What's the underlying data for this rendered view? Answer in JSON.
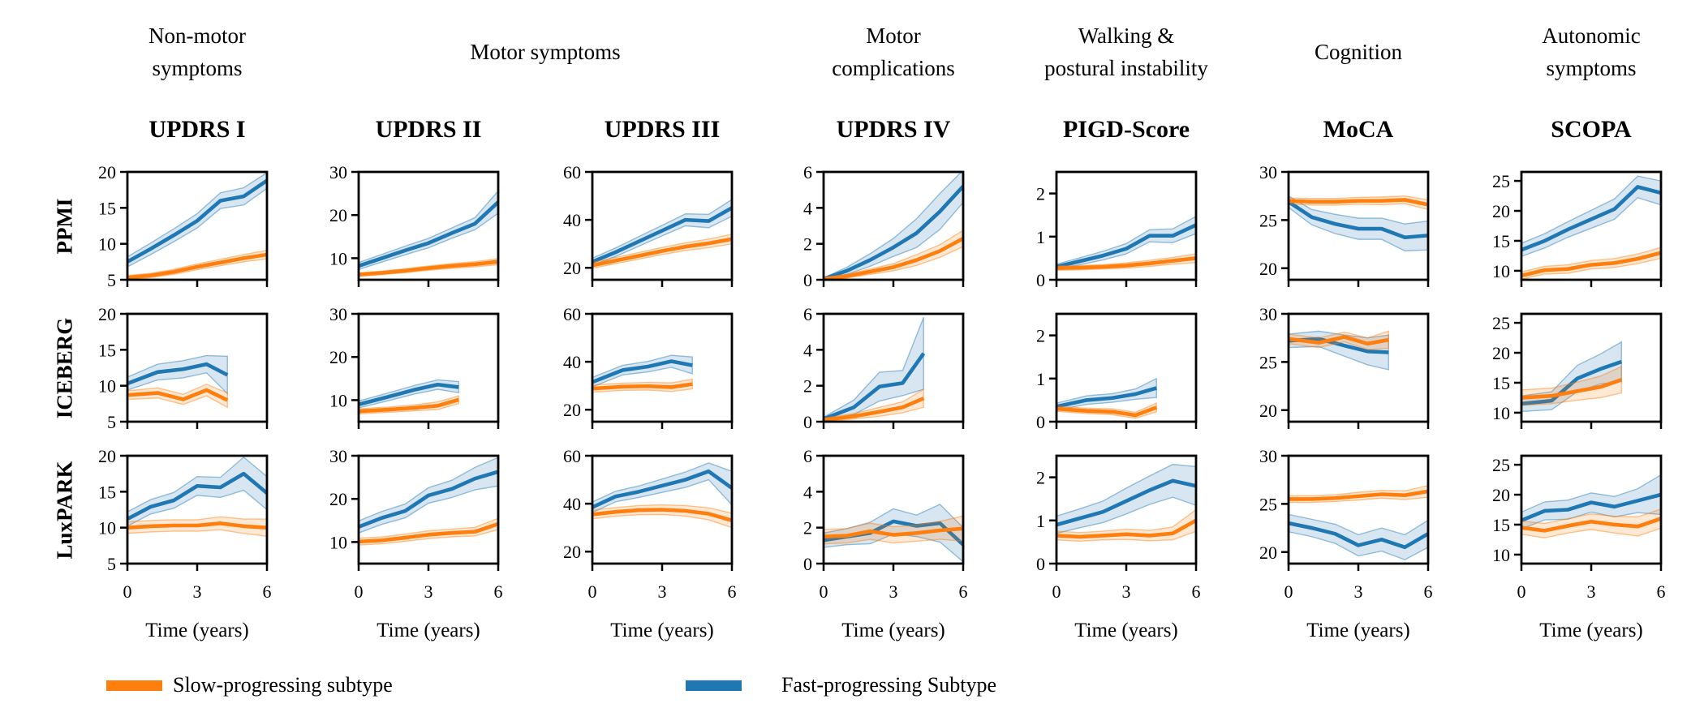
{
  "figure": {
    "background": "#ffffff"
  },
  "colors": {
    "slow": "#FF7F0E",
    "fast": "#1F77B4",
    "axis": "#000000"
  },
  "legend": [
    {
      "key": "slow",
      "label": "Slow-progressing subtype"
    },
    {
      "key": "fast",
      "label": "Fast-progressing Subtype"
    }
  ],
  "group_headers": [
    {
      "lines": [
        "Non-motor",
        "symptoms"
      ],
      "columns": [
        0
      ]
    },
    {
      "lines": [
        "Motor symptoms"
      ],
      "columns": [
        1,
        2
      ]
    },
    {
      "lines": [
        "Motor",
        "complications"
      ],
      "columns": [
        3
      ]
    },
    {
      "lines": [
        "Walking &",
        "postural instability"
      ],
      "columns": [
        4
      ]
    },
    {
      "lines": [
        "Cognition"
      ],
      "columns": [
        5
      ]
    },
    {
      "lines": [
        "Autonomic",
        "symptoms"
      ],
      "columns": [
        6
      ]
    }
  ],
  "chart_data": {
    "type": "line",
    "xlabel": "Time (years)",
    "xticks": [
      0,
      3,
      6
    ],
    "xlim": [
      0,
      6
    ],
    "legend_position": "bottom",
    "grid_lines": false,
    "columns": [
      {
        "title": "UPDRS I",
        "yticks": [
          5,
          10,
          15,
          20
        ],
        "ylim": [
          5,
          20
        ]
      },
      {
        "title": "UPDRS II",
        "yticks": [
          10,
          20,
          30
        ],
        "ylim": [
          5,
          30
        ]
      },
      {
        "title": "UPDRS III",
        "yticks": [
          20,
          40,
          60
        ],
        "ylim": [
          15,
          60
        ]
      },
      {
        "title": "UPDRS IV",
        "yticks": [
          0,
          2,
          4,
          6
        ],
        "ylim": [
          0,
          6
        ]
      },
      {
        "title": "PIGD-Score",
        "yticks": [
          0,
          1,
          2
        ],
        "ylim": [
          0,
          2.5
        ]
      },
      {
        "title": "MoCA",
        "yticks": [
          20,
          25,
          30
        ],
        "ylim": [
          18.8,
          30
        ]
      },
      {
        "title": "SCOPA",
        "yticks": [
          10,
          15,
          20,
          25
        ],
        "ylim": [
          8.5,
          26.5
        ]
      }
    ],
    "rows": [
      {
        "label": "PPMI",
        "x": [
          0,
          1,
          2,
          3,
          4,
          5,
          6
        ]
      },
      {
        "label": "ICEBERG",
        "x": [
          0,
          1.3,
          2.4,
          3.4,
          4.3
        ]
      },
      {
        "label": "LuxPARK",
        "x": [
          0,
          1,
          2,
          3,
          4,
          5,
          6
        ]
      }
    ],
    "grid": [
      {
        "row": "PPMI",
        "col": "UPDRS I",
        "series": {
          "fast": {
            "values": [
              7.5,
              9.3,
              11.2,
              13.2,
              16.0,
              16.6,
              18.8
            ],
            "band": [
              0.7,
              0.8,
              0.9,
              1.0,
              1.1,
              1.2,
              1.1
            ]
          },
          "slow": {
            "values": [
              5.3,
              5.6,
              6.1,
              6.8,
              7.4,
              8.0,
              8.5
            ],
            "band": [
              0.3,
              0.3,
              0.35,
              0.4,
              0.45,
              0.5,
              0.6
            ]
          }
        }
      },
      {
        "row": "PPMI",
        "col": "UPDRS II",
        "series": {
          "fast": {
            "values": [
              8.2,
              10.0,
              11.8,
              13.5,
              15.8,
              18.0,
              23.0
            ],
            "band": [
              0.8,
              0.9,
              1.0,
              1.1,
              1.2,
              1.4,
              2.6
            ]
          },
          "slow": {
            "values": [
              6.2,
              6.6,
              7.1,
              7.7,
              8.2,
              8.6,
              9.2
            ],
            "band": [
              0.4,
              0.4,
              0.45,
              0.5,
              0.55,
              0.6,
              0.7
            ]
          }
        }
      },
      {
        "row": "PPMI",
        "col": "UPDRS III",
        "series": {
          "fast": {
            "values": [
              22.5,
              26.5,
              31.0,
              35.5,
              40.0,
              39.5,
              45.0
            ],
            "band": [
              1.5,
              1.8,
              2.0,
              2.2,
              2.5,
              2.8,
              3.5
            ]
          },
          "slow": {
            "values": [
              21.0,
              23.0,
              25.0,
              27.0,
              28.8,
              30.2,
              32.0
            ],
            "band": [
              1.2,
              1.3,
              1.4,
              1.5,
              1.6,
              1.8,
              2.0
            ]
          }
        }
      },
      {
        "row": "PPMI",
        "col": "UPDRS IV",
        "series": {
          "fast": {
            "values": [
              0.05,
              0.5,
              1.1,
              1.8,
              2.6,
              3.8,
              5.2
            ],
            "band": [
              0.05,
              0.2,
              0.35,
              0.5,
              0.8,
              1.0,
              0.9
            ]
          },
          "slow": {
            "values": [
              0.05,
              0.2,
              0.45,
              0.7,
              1.1,
              1.6,
              2.3
            ],
            "band": [
              0.05,
              0.1,
              0.15,
              0.2,
              0.3,
              0.35,
              0.45
            ]
          }
        }
      },
      {
        "row": "PPMI",
        "col": "PIGD-Score",
        "series": {
          "fast": {
            "values": [
              0.3,
              0.43,
              0.56,
              0.72,
              1.02,
              1.02,
              1.27
            ],
            "band": [
              0.06,
              0.08,
              0.1,
              0.12,
              0.14,
              0.16,
              0.2
            ]
          },
          "slow": {
            "values": [
              0.27,
              0.28,
              0.3,
              0.33,
              0.38,
              0.44,
              0.5
            ],
            "band": [
              0.05,
              0.05,
              0.05,
              0.06,
              0.07,
              0.08,
              0.1
            ]
          }
        }
      },
      {
        "row": "PPMI",
        "col": "MoCA",
        "series": {
          "fast": {
            "values": [
              26.9,
              25.3,
              24.6,
              24.1,
              24.1,
              23.2,
              23.4
            ],
            "band": [
              0.6,
              0.8,
              1.0,
              1.1,
              1.1,
              1.4,
              1.5
            ]
          },
          "slow": {
            "values": [
              27.0,
              26.9,
              26.9,
              27.0,
              27.0,
              27.1,
              26.6
            ],
            "band": [
              0.3,
              0.35,
              0.35,
              0.35,
              0.4,
              0.4,
              0.5
            ]
          }
        }
      },
      {
        "row": "PPMI",
        "col": "SCOPA",
        "series": {
          "fast": {
            "values": [
              13.5,
              15.0,
              16.9,
              18.6,
              20.3,
              24.0,
              23.0
            ],
            "band": [
              1.1,
              1.2,
              1.3,
              1.5,
              1.7,
              1.8,
              2.0
            ]
          },
          "slow": {
            "values": [
              9.2,
              10.1,
              10.3,
              11.0,
              11.3,
              12.0,
              13.0
            ],
            "band": [
              0.6,
              0.65,
              0.7,
              0.7,
              0.75,
              0.8,
              0.9
            ]
          }
        }
      },
      {
        "row": "ICEBERG",
        "col": "UPDRS I",
        "series": {
          "fast": {
            "values": [
              10.3,
              11.9,
              12.3,
              13.0,
              11.5
            ],
            "band": [
              0.9,
              1.1,
              1.2,
              1.2,
              2.6
            ]
          },
          "slow": {
            "values": [
              8.7,
              9.0,
              8.1,
              9.4,
              8.0
            ],
            "band": [
              0.6,
              0.7,
              0.7,
              0.8,
              1.0
            ]
          }
        }
      },
      {
        "row": "ICEBERG",
        "col": "UPDRS II",
        "series": {
          "fast": {
            "values": [
              9.0,
              10.8,
              12.4,
              13.6,
              13.0
            ],
            "band": [
              0.8,
              0.9,
              1.0,
              1.1,
              1.3
            ]
          },
          "slow": {
            "values": [
              7.4,
              7.8,
              8.2,
              8.7,
              10.1
            ],
            "band": [
              0.6,
              0.6,
              0.7,
              0.9,
              0.9
            ]
          }
        }
      },
      {
        "row": "ICEBERG",
        "col": "UPDRS III",
        "series": {
          "fast": {
            "values": [
              31.5,
              36.5,
              38.0,
              40.2,
              38.5
            ],
            "band": [
              2.0,
              2.0,
              2.2,
              2.5,
              3.5
            ]
          },
          "slow": {
            "values": [
              28.8,
              29.6,
              29.8,
              29.4,
              30.7
            ],
            "band": [
              1.5,
              1.5,
              1.6,
              1.8,
              2.0
            ]
          }
        }
      },
      {
        "row": "ICEBERG",
        "col": "UPDRS IV",
        "series": {
          "fast": {
            "values": [
              0.15,
              0.8,
              1.95,
              2.15,
              3.8
            ],
            "band": [
              0.1,
              0.4,
              0.8,
              0.7,
              2.0
            ]
          },
          "slow": {
            "values": [
              0.1,
              0.3,
              0.55,
              0.8,
              1.3
            ],
            "band": [
              0.1,
              0.15,
              0.25,
              0.3,
              0.5
            ]
          }
        }
      },
      {
        "row": "ICEBERG",
        "col": "PIGD-Score",
        "series": {
          "fast": {
            "values": [
              0.35,
              0.5,
              0.55,
              0.64,
              0.78
            ],
            "band": [
              0.08,
              0.1,
              0.1,
              0.12,
              0.22
            ]
          },
          "slow": {
            "values": [
              0.3,
              0.25,
              0.23,
              0.15,
              0.33
            ],
            "band": [
              0.06,
              0.06,
              0.07,
              0.07,
              0.1
            ]
          }
        }
      },
      {
        "row": "ICEBERG",
        "col": "MoCA",
        "series": {
          "fast": {
            "values": [
              27.2,
              27.4,
              26.7,
              26.1,
              26.0
            ],
            "band": [
              0.7,
              0.8,
              1.1,
              1.4,
              1.8
            ]
          },
          "slow": {
            "values": [
              27.4,
              27.0,
              27.6,
              26.9,
              27.3
            ],
            "band": [
              0.5,
              0.5,
              0.5,
              0.6,
              0.9
            ]
          }
        }
      },
      {
        "row": "ICEBERG",
        "col": "SCOPA",
        "series": {
          "fast": {
            "values": [
              11.5,
              12.0,
              15.7,
              17.3,
              18.5
            ],
            "band": [
              1.3,
              1.5,
              2.2,
              2.5,
              3.3
            ]
          },
          "slow": {
            "values": [
              12.5,
              12.8,
              13.6,
              14.3,
              15.5
            ],
            "band": [
              1.3,
              1.3,
              1.5,
              1.8,
              2.2
            ]
          }
        }
      },
      {
        "row": "LuxPARK",
        "col": "UPDRS I",
        "series": {
          "fast": {
            "values": [
              11.2,
              12.9,
              13.8,
              15.8,
              15.6,
              17.5,
              14.8
            ],
            "band": [
              1.0,
              1.0,
              1.1,
              1.3,
              1.4,
              2.3,
              2.3
            ]
          },
          "slow": {
            "values": [
              10.0,
              10.2,
              10.3,
              10.3,
              10.6,
              10.2,
              10.0
            ],
            "band": [
              0.8,
              0.8,
              0.8,
              0.8,
              0.9,
              1.0,
              1.2
            ]
          }
        }
      },
      {
        "row": "LuxPARK",
        "col": "UPDRS II",
        "series": {
          "fast": {
            "values": [
              13.5,
              15.6,
              17.2,
              20.8,
              22.3,
              24.7,
              26.3
            ],
            "band": [
              1.4,
              1.5,
              1.6,
              1.8,
              2.0,
              2.6,
              3.3
            ]
          },
          "slow": {
            "values": [
              10.1,
              10.4,
              11.0,
              11.7,
              12.1,
              12.4,
              14.2
            ],
            "band": [
              0.8,
              0.8,
              0.85,
              0.9,
              0.9,
              1.0,
              1.3
            ]
          }
        }
      },
      {
        "row": "LuxPARK",
        "col": "UPDRS III",
        "series": {
          "fast": {
            "values": [
              38.5,
              43.0,
              45.0,
              47.5,
              50.0,
              53.5,
              46.5
            ],
            "band": [
              2.2,
              2.2,
              2.4,
              2.8,
              3.2,
              3.5,
              7.0
            ]
          },
          "slow": {
            "values": [
              35.5,
              36.6,
              37.3,
              37.5,
              37.0,
              35.8,
              33.0
            ],
            "band": [
              1.8,
              1.8,
              1.9,
              2.0,
              2.2,
              2.5,
              3.0
            ]
          }
        }
      },
      {
        "row": "LuxPARK",
        "col": "UPDRS IV",
        "series": {
          "fast": {
            "values": [
              1.3,
              1.5,
              1.7,
              2.35,
              2.1,
              2.25,
              1.05
            ],
            "band": [
              0.4,
              0.45,
              0.6,
              0.7,
              0.6,
              1.05,
              0.95
            ]
          },
          "slow": {
            "values": [
              1.5,
              1.55,
              1.8,
              1.6,
              1.7,
              1.85,
              1.95
            ],
            "band": [
              0.4,
              0.4,
              0.45,
              0.45,
              0.45,
              0.5,
              0.7
            ]
          }
        }
      },
      {
        "row": "LuxPARK",
        "col": "PIGD-Score",
        "series": {
          "fast": {
            "values": [
              0.9,
              1.05,
              1.2,
              1.45,
              1.7,
              1.92,
              1.8
            ],
            "band": [
              0.2,
              0.22,
              0.25,
              0.3,
              0.33,
              0.38,
              0.45
            ]
          },
          "slow": {
            "values": [
              0.65,
              0.62,
              0.65,
              0.68,
              0.65,
              0.7,
              1.0
            ],
            "band": [
              0.1,
              0.1,
              0.1,
              0.12,
              0.12,
              0.15,
              0.25
            ]
          }
        }
      },
      {
        "row": "LuxPARK",
        "col": "MoCA",
        "series": {
          "fast": {
            "values": [
              23.0,
              22.5,
              21.9,
              20.7,
              21.3,
              20.5,
              21.9
            ],
            "band": [
              0.9,
              0.9,
              1.0,
              1.1,
              1.2,
              1.3,
              1.4
            ]
          },
          "slow": {
            "values": [
              25.5,
              25.5,
              25.6,
              25.8,
              26.0,
              25.9,
              26.3
            ],
            "band": [
              0.35,
              0.35,
              0.35,
              0.4,
              0.4,
              0.45,
              0.6
            ]
          }
        }
      },
      {
        "row": "LuxPARK",
        "col": "SCOPA",
        "series": {
          "fast": {
            "values": [
              15.7,
              17.3,
              17.5,
              18.7,
              18.0,
              19.0,
              20.0
            ],
            "band": [
              1.4,
              1.5,
              1.6,
              1.6,
              1.7,
              2.0,
              3.3
            ]
          },
          "slow": {
            "values": [
              14.5,
              14.0,
              14.8,
              15.5,
              15.0,
              14.7,
              16.0
            ],
            "band": [
              1.1,
              1.2,
              1.2,
              1.3,
              1.4,
              1.6,
              1.6
            ]
          }
        }
      }
    ]
  }
}
